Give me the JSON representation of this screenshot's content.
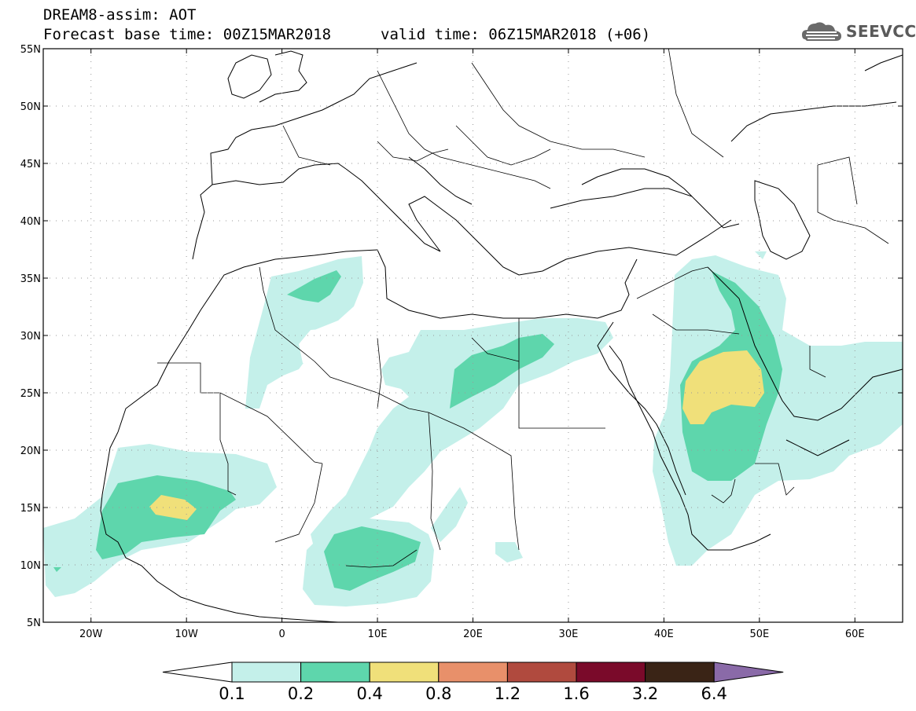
{
  "header": {
    "title_line1": "DREAM8-assim: AOT",
    "title_line2": "Forecast base time: 00Z15MAR2018",
    "valid_time": "valid time: 06Z15MAR2018 (+06)",
    "logo_text": "SEEVCCC"
  },
  "map": {
    "lon_min": -25,
    "lon_max": 65,
    "lat_min": 5,
    "lat_max": 55,
    "lat_labels": [
      "55N",
      "50N",
      "45N",
      "40N",
      "35N",
      "30N",
      "25N",
      "20N",
      "15N",
      "10N",
      "5N"
    ],
    "lon_labels": [
      "20W",
      "10W",
      "0",
      "10E",
      "20E",
      "30E",
      "40E",
      "50E",
      "60E"
    ]
  },
  "colorbar": {
    "thresholds": [
      "0.1",
      "0.2",
      "0.4",
      "0.8",
      "1.2",
      "1.6",
      "3.2",
      "6.4"
    ],
    "colors": [
      "#ffffff",
      "#c4f0ea",
      "#5ed6ac",
      "#f0e07a",
      "#e8906a",
      "#b04a3e",
      "#7a0a2a",
      "#3a2416",
      "#8a6aa8"
    ]
  },
  "icons": {
    "logo": "cloud-logo-icon"
  }
}
